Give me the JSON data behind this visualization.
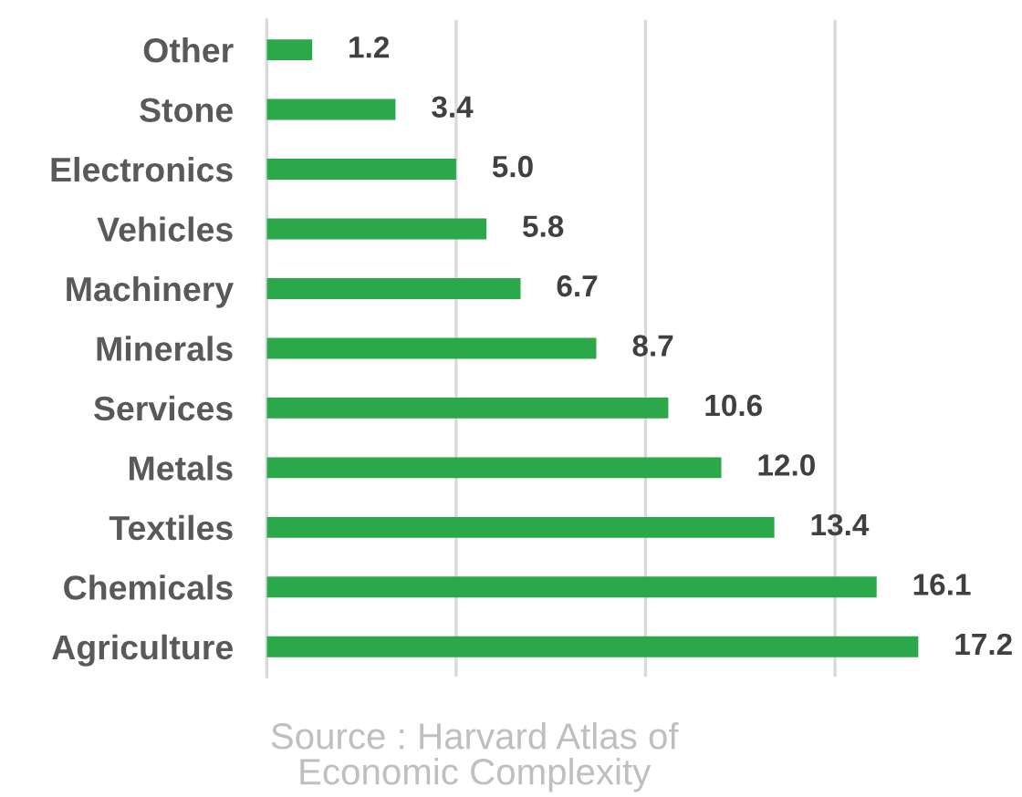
{
  "chart_data": {
    "type": "bar",
    "orientation": "horizontal",
    "categories": [
      "Other",
      "Stone",
      "Electronics",
      "Vehicles",
      "Machinery",
      "Minerals",
      "Services",
      "Metals",
      "Textiles",
      "Chemicals",
      "Agriculture"
    ],
    "values": [
      1.2,
      3.4,
      5.0,
      5.8,
      6.7,
      8.7,
      10.6,
      12.0,
      13.4,
      16.1,
      17.2
    ],
    "value_labels": [
      "1.2",
      "3.4",
      "5.0",
      "5.8",
      "6.7",
      "8.7",
      "10.6",
      "12.0",
      "13.4",
      "16.1",
      "17.2"
    ],
    "color": "#2aa84a",
    "xticks": [
      {
        "value": 0,
        "label": null
      },
      {
        "value": 5,
        "label": null
      },
      {
        "value": 10,
        "label": null
      },
      {
        "value": 15,
        "label": null
      }
    ],
    "grid": "x",
    "tick_labels": "y",
    "annotations": [
      "Source : Harvard Atlas of\nEconomic Complexity"
    ]
  }
}
